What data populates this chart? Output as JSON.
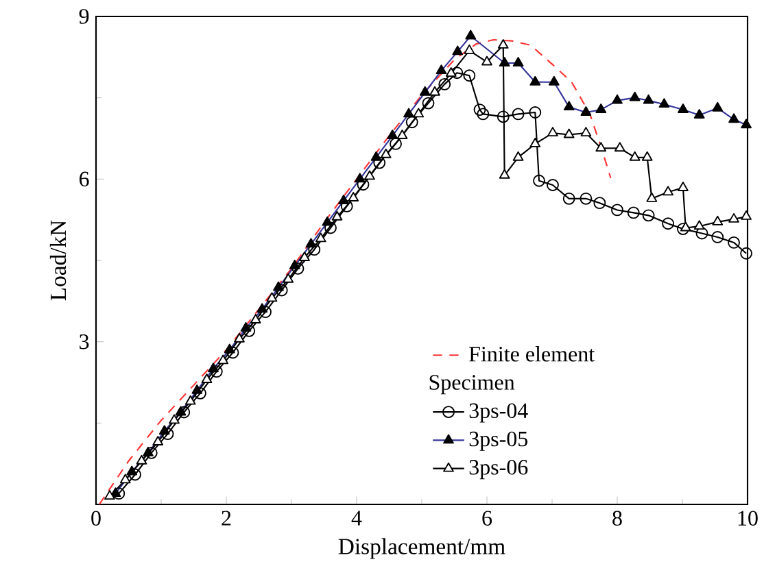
{
  "chart_data": {
    "type": "line",
    "xlabel": "Displacement/mm",
    "ylabel": "Load/kN",
    "legend_title": "Specimen",
    "xlim": [
      0,
      10
    ],
    "ylim": [
      0,
      9
    ],
    "xticks": [
      0,
      2,
      4,
      6,
      8,
      10
    ],
    "yticks": [
      {
        "value": 0,
        "label": null
      },
      3,
      6,
      9
    ],
    "grid": false,
    "legend": "bottom right",
    "series": [
      {
        "name": "Finite element",
        "color": "#ff3333",
        "line_style": "dashed",
        "marker": "none",
        "x": [
          0.05,
          0.5,
          1.0,
          1.5,
          2.0,
          2.5,
          3.0,
          3.5,
          4.0,
          4.5,
          5.0,
          5.5,
          5.83,
          6.1,
          6.38,
          6.67,
          7.01,
          7.3,
          7.58,
          7.75,
          7.9
        ],
        "values": [
          0,
          0.8,
          1.55,
          2.2,
          2.85,
          3.6,
          4.35,
          5.2,
          6.0,
          6.8,
          7.55,
          8.2,
          8.49,
          8.57,
          8.55,
          8.47,
          8.11,
          7.79,
          7.2,
          6.6,
          6.02
        ]
      },
      {
        "name": "3ps-04",
        "color": "#000000",
        "line_style": "solid",
        "marker": "circle",
        "x": [
          0.35,
          0.6,
          0.85,
          1.1,
          1.35,
          1.6,
          1.85,
          2.1,
          2.35,
          2.6,
          2.85,
          3.1,
          3.35,
          3.6,
          3.85,
          4.1,
          4.35,
          4.6,
          4.85,
          5.1,
          5.35,
          5.54,
          5.73,
          5.89,
          5.94,
          6.25,
          6.48,
          6.74,
          6.8,
          7.01,
          7.26,
          7.52,
          7.73,
          8.0,
          8.25,
          8.48,
          8.78,
          9.01,
          9.3,
          9.54,
          9.79,
          9.98
        ],
        "values": [
          0.2,
          0.55,
          0.95,
          1.3,
          1.7,
          2.05,
          2.45,
          2.8,
          3.2,
          3.55,
          3.95,
          4.35,
          4.7,
          5.1,
          5.5,
          5.9,
          6.3,
          6.65,
          7.05,
          7.4,
          7.75,
          7.96,
          7.91,
          7.28,
          7.2,
          7.15,
          7.2,
          7.23,
          5.97,
          5.89,
          5.64,
          5.64,
          5.56,
          5.43,
          5.38,
          5.33,
          5.18,
          5.08,
          5.0,
          4.93,
          4.83,
          4.63
        ]
      },
      {
        "name": "3ps-05",
        "color": "#333399",
        "line_style": "solid",
        "marker": "triangle",
        "x": [
          0.3,
          0.55,
          0.8,
          1.05,
          1.3,
          1.55,
          1.8,
          2.05,
          2.3,
          2.55,
          2.8,
          3.05,
          3.3,
          3.55,
          3.8,
          4.05,
          4.3,
          4.55,
          4.8,
          5.05,
          5.3,
          5.55,
          5.75,
          6.27,
          6.48,
          6.74,
          7.03,
          7.26,
          7.52,
          7.75,
          8.0,
          8.27,
          8.48,
          8.72,
          9.01,
          9.26,
          9.54,
          9.79,
          9.98
        ],
        "values": [
          0.2,
          0.6,
          0.95,
          1.35,
          1.7,
          2.1,
          2.5,
          2.85,
          3.25,
          3.6,
          4.0,
          4.4,
          4.8,
          5.2,
          5.6,
          6.0,
          6.4,
          6.8,
          7.2,
          7.6,
          8.0,
          8.35,
          8.64,
          8.14,
          8.14,
          7.79,
          7.79,
          7.33,
          7.23,
          7.28,
          7.45,
          7.5,
          7.45,
          7.38,
          7.28,
          7.18,
          7.31,
          7.1,
          7.0
        ]
      },
      {
        "name": "3ps-06",
        "color": "#000000",
        "line_style": "solid",
        "marker": "triangle",
        "x": [
          0.21,
          0.45,
          0.7,
          0.95,
          1.2,
          1.45,
          1.7,
          1.95,
          2.2,
          2.45,
          2.7,
          2.95,
          3.2,
          3.45,
          3.7,
          3.95,
          4.2,
          4.45,
          4.7,
          4.95,
          5.2,
          5.45,
          5.73,
          6.0,
          6.25,
          6.27,
          6.48,
          6.74,
          7.01,
          7.26,
          7.52,
          7.75,
          8.04,
          8.27,
          8.46,
          8.53,
          8.78,
          9.01,
          9.05,
          9.26,
          9.54,
          9.79,
          9.98
        ],
        "values": [
          0.15,
          0.45,
          0.8,
          1.15,
          1.55,
          1.9,
          2.3,
          2.65,
          3.05,
          3.4,
          3.8,
          4.15,
          4.55,
          4.9,
          5.3,
          5.65,
          6.05,
          6.45,
          6.8,
          7.2,
          7.6,
          7.95,
          8.37,
          8.16,
          8.47,
          6.07,
          6.4,
          6.65,
          6.85,
          6.82,
          6.85,
          6.57,
          6.57,
          6.4,
          6.4,
          5.64,
          5.76,
          5.84,
          5.1,
          5.13,
          5.21,
          5.26,
          5.31
        ]
      }
    ]
  }
}
